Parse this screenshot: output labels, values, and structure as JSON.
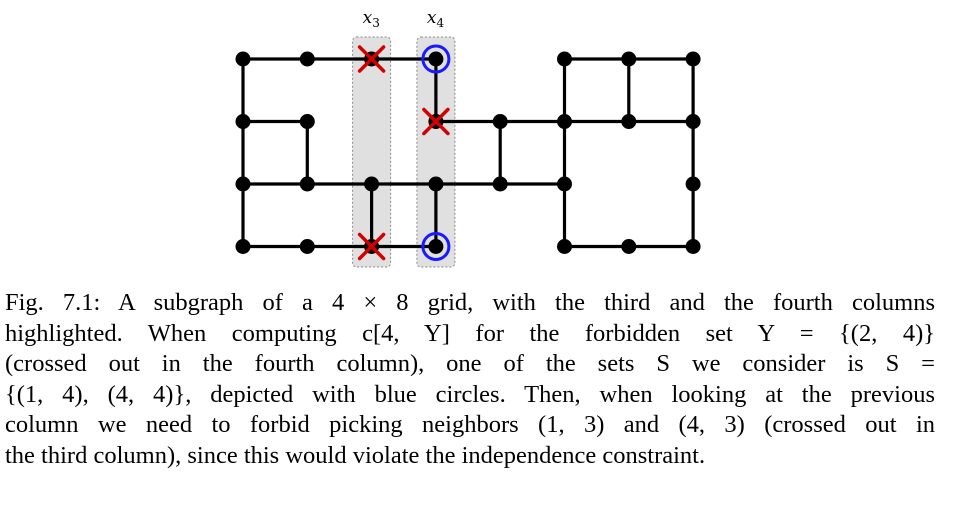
{
  "figure": {
    "column_labels": [
      {
        "var": "x",
        "sub": "3"
      },
      {
        "var": "x",
        "sub": "4"
      }
    ],
    "highlighted_columns": [
      3,
      4
    ],
    "grid": {
      "rows": 4,
      "cols": 8
    },
    "colors": {
      "edge": "#000000",
      "vertex": "#000000",
      "highlight_fill": "#e0e0e0",
      "highlight_border": "#888888",
      "cross": "#d40000",
      "circle": "#1a1aff"
    },
    "vertices": [
      [
        1,
        1
      ],
      [
        1,
        2
      ],
      [
        1,
        3
      ],
      [
        1,
        4
      ],
      [
        1,
        6
      ],
      [
        1,
        7
      ],
      [
        1,
        8
      ],
      [
        2,
        1
      ],
      [
        2,
        2
      ],
      [
        2,
        4
      ],
      [
        2,
        5
      ],
      [
        2,
        6
      ],
      [
        2,
        7
      ],
      [
        2,
        8
      ],
      [
        3,
        1
      ],
      [
        3,
        2
      ],
      [
        3,
        3
      ],
      [
        3,
        4
      ],
      [
        3,
        5
      ],
      [
        3,
        6
      ],
      [
        3,
        8
      ],
      [
        4,
        1
      ],
      [
        4,
        2
      ],
      [
        4,
        3
      ],
      [
        4,
        4
      ],
      [
        4,
        6
      ],
      [
        4,
        7
      ],
      [
        4,
        8
      ]
    ],
    "edges": [
      [
        [
          1,
          1
        ],
        [
          1,
          4
        ]
      ],
      [
        [
          1,
          6
        ],
        [
          1,
          8
        ]
      ],
      [
        [
          2,
          1
        ],
        [
          2,
          2
        ]
      ],
      [
        [
          2,
          4
        ],
        [
          2,
          8
        ]
      ],
      [
        [
          3,
          1
        ],
        [
          3,
          6
        ]
      ],
      [
        [
          4,
          1
        ],
        [
          4,
          4
        ]
      ],
      [
        [
          4,
          6
        ],
        [
          4,
          8
        ]
      ],
      [
        [
          1,
          1
        ],
        [
          4,
          1
        ]
      ],
      [
        [
          2,
          2
        ],
        [
          3,
          2
        ]
      ],
      [
        [
          3,
          3
        ],
        [
          4,
          3
        ]
      ],
      [
        [
          1,
          4
        ],
        [
          2,
          4
        ]
      ],
      [
        [
          3,
          4
        ],
        [
          4,
          4
        ]
      ],
      [
        [
          2,
          5
        ],
        [
          3,
          5
        ]
      ],
      [
        [
          1,
          6
        ],
        [
          4,
          6
        ]
      ],
      [
        [
          1,
          7
        ],
        [
          2,
          7
        ]
      ],
      [
        [
          1,
          8
        ],
        [
          4,
          8
        ]
      ]
    ],
    "crossed": [
      [
        1,
        3
      ],
      [
        2,
        4
      ],
      [
        4,
        3
      ]
    ],
    "circled": [
      [
        1,
        4
      ],
      [
        4,
        4
      ]
    ]
  },
  "caption": {
    "lines": [
      "Fig. 7.1: A subgraph of a 4 × 8 grid, with the third and the fourth columns",
      "highlighted. When computing c[4, Y] for the forbidden set Y = {(2, 4)}",
      "(crossed out in the fourth column), one of the sets S we consider is S =",
      "{(1, 4), (4, 4)}, depicted with blue circles. Then, when looking at the previous",
      "column we need to forbid picking neighbors (1, 3) and (4, 3) (crossed out in",
      "the third column), since this would violate the independence constraint."
    ]
  }
}
